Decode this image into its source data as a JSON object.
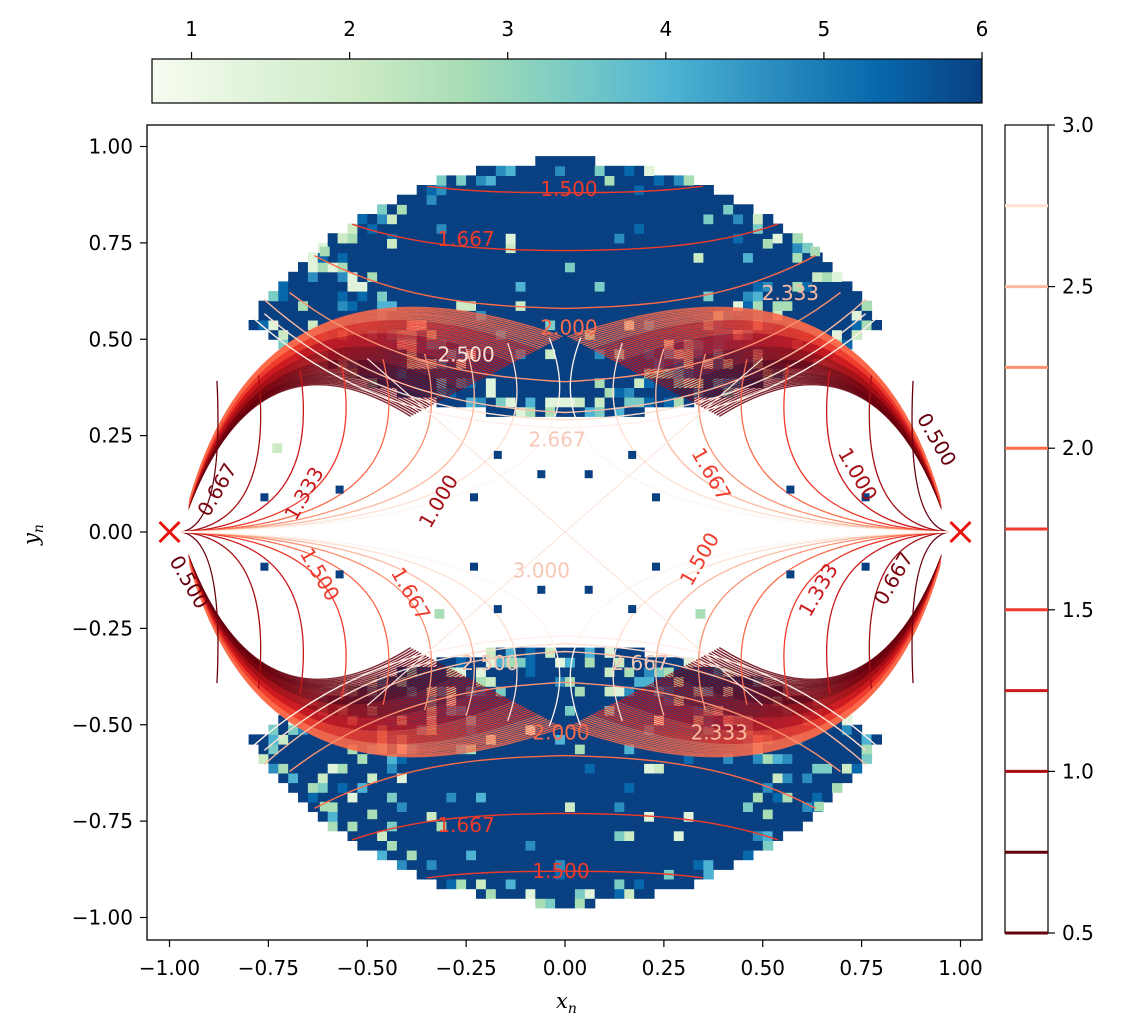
{
  "chart_data": {
    "type": "heatmap",
    "title": "",
    "xlabel": "x",
    "xlabel_sub": "n",
    "ylabel": "y",
    "ylabel_sub": "n",
    "xlim": [
      -1.05,
      1.05
    ],
    "ylim": [
      -1.05,
      1.05
    ],
    "xticks": [
      -1.0,
      -0.75,
      -0.5,
      -0.25,
      0.0,
      0.25,
      0.5,
      0.75,
      1.0
    ],
    "xtick_labels": [
      "−1.00",
      "−0.75",
      "−0.50",
      "−0.25",
      "0.00",
      "0.25",
      "0.50",
      "0.75",
      "1.00"
    ],
    "yticks": [
      -1.0,
      -0.75,
      -0.5,
      -0.25,
      0.0,
      0.25,
      0.5,
      0.75,
      1.0
    ],
    "ytick_labels": [
      "−1.00",
      "−0.75",
      "−0.50",
      "−0.25",
      "0.00",
      "0.25",
      "0.50",
      "0.75",
      "1.00"
    ],
    "grid": false,
    "heatmap_colorbar": {
      "orientation": "horizontal",
      "colormap": "GnBu",
      "range": [
        0.75,
        6.0
      ],
      "ticks": [
        1,
        2,
        3,
        4,
        5,
        6
      ],
      "tick_labels": [
        "1",
        "2",
        "3",
        "4",
        "5",
        "6"
      ]
    },
    "contour_colorbar": {
      "orientation": "vertical",
      "colormap": "Reds_r",
      "range": [
        0.5,
        3.0
      ],
      "ticks": [
        0.5,
        1.0,
        1.5,
        2.0,
        2.5,
        3.0
      ],
      "tick_labels": [
        "0.5",
        "1.0",
        "1.5",
        "2.0",
        "2.5",
        "3.0"
      ],
      "levels": [
        0.75,
        1.0,
        1.25,
        1.5,
        1.75,
        2.0,
        2.25,
        2.5,
        2.75
      ]
    },
    "heatmap_region": "unit disk, dominant value ~6, empty band |y| < 0.35 near centre",
    "heatmap_bright_cells": [
      {
        "x": -0.45,
        "y": 0.74,
        "value": 2.2
      },
      {
        "x": -0.62,
        "y": 0.72,
        "value": 2.6
      },
      {
        "x": 0.5,
        "y": 0.74,
        "value": 2.4
      },
      {
        "x": 0.62,
        "y": 0.72,
        "value": 2.8
      },
      {
        "x": -0.5,
        "y": -0.74,
        "value": 2.3
      },
      {
        "x": -0.62,
        "y": -0.72,
        "value": 2.7
      },
      {
        "x": 0.5,
        "y": -0.74,
        "value": 2.4
      },
      {
        "x": 0.63,
        "y": -0.72,
        "value": 2.8
      },
      {
        "x": -0.74,
        "y": 0.21,
        "value": 2.0
      },
      {
        "x": -0.33,
        "y": -0.22,
        "value": 2.5
      },
      {
        "x": 0.33,
        "y": -0.22,
        "value": 2.5
      }
    ],
    "scatter_points": [
      {
        "x": -0.17,
        "y": 0.2,
        "value": 6
      },
      {
        "x": 0.17,
        "y": 0.2,
        "value": 6
      },
      {
        "x": -0.06,
        "y": 0.15,
        "value": 6
      },
      {
        "x": 0.06,
        "y": 0.15,
        "value": 6
      },
      {
        "x": -0.23,
        "y": 0.09,
        "value": 6
      },
      {
        "x": 0.23,
        "y": 0.09,
        "value": 6
      },
      {
        "x": -0.57,
        "y": 0.11,
        "value": 6
      },
      {
        "x": 0.57,
        "y": 0.11,
        "value": 6
      },
      {
        "x": -0.76,
        "y": 0.09,
        "value": 6
      },
      {
        "x": 0.76,
        "y": 0.09,
        "value": 6
      },
      {
        "x": -0.76,
        "y": -0.09,
        "value": 6
      },
      {
        "x": 0.76,
        "y": -0.09,
        "value": 6
      },
      {
        "x": -0.57,
        "y": -0.11,
        "value": 6
      },
      {
        "x": 0.57,
        "y": -0.11,
        "value": 6
      },
      {
        "x": -0.23,
        "y": -0.09,
        "value": 6
      },
      {
        "x": 0.23,
        "y": -0.09,
        "value": 6
      },
      {
        "x": -0.06,
        "y": -0.15,
        "value": 6
      },
      {
        "x": 0.06,
        "y": -0.15,
        "value": 6
      },
      {
        "x": -0.17,
        "y": -0.2,
        "value": 6
      },
      {
        "x": 0.17,
        "y": -0.2,
        "value": 6
      }
    ],
    "markers": [
      {
        "x": -1.0,
        "y": 0.0,
        "shape": "x",
        "color": "#e8130f"
      },
      {
        "x": 1.0,
        "y": 0.0,
        "shape": "x",
        "color": "#e8130f"
      }
    ],
    "contour_labels": [
      {
        "text": "1.500",
        "x": 0.01,
        "y": 0.89,
        "level": 1.5
      },
      {
        "text": "1.667",
        "x": -0.25,
        "y": 0.76,
        "level": 1.667
      },
      {
        "text": "2.000",
        "x": 0.01,
        "y": 0.53,
        "level": 2.0
      },
      {
        "text": "2.500",
        "x": -0.25,
        "y": 0.46,
        "level": 2.5
      },
      {
        "text": "2.333",
        "x": 0.57,
        "y": 0.62,
        "level": 2.333
      },
      {
        "text": "2.667",
        "x": -0.02,
        "y": 0.24,
        "level": 2.667
      },
      {
        "text": "3.000",
        "x": -0.06,
        "y": -0.1,
        "level": 3.0
      },
      {
        "text": "1.000",
        "x": -0.32,
        "y": 0.08,
        "level": 1.0
      },
      {
        "text": "1.333",
        "x": -0.66,
        "y": 0.1,
        "level": 1.333
      },
      {
        "text": "0.667",
        "x": -0.88,
        "y": 0.11,
        "level": 0.667
      },
      {
        "text": "0.500",
        "x": -0.95,
        "y": -0.13,
        "level": 0.5
      },
      {
        "text": "1.500",
        "x": -0.62,
        "y": -0.11,
        "level": 1.5
      },
      {
        "text": "1.667",
        "x": -0.39,
        "y": -0.16,
        "level": 1.667
      },
      {
        "text": "1.667",
        "x": 0.37,
        "y": 0.15,
        "level": 1.667
      },
      {
        "text": "1.500",
        "x": 0.34,
        "y": -0.07,
        "level": 1.5
      },
      {
        "text": "1.000",
        "x": 0.74,
        "y": 0.15,
        "level": 1.0
      },
      {
        "text": "1.333",
        "x": 0.64,
        "y": -0.15,
        "level": 1.333
      },
      {
        "text": "0.667",
        "x": 0.83,
        "y": -0.12,
        "level": 0.667
      },
      {
        "text": "0.500",
        "x": 0.94,
        "y": 0.24,
        "level": 0.5
      },
      {
        "text": "2.500",
        "x": -0.19,
        "y": -0.34,
        "level": 2.5
      },
      {
        "text": "2.667",
        "x": 0.19,
        "y": -0.34,
        "level": 2.667
      },
      {
        "text": "2.000",
        "x": -0.01,
        "y": -0.52,
        "level": 2.0
      },
      {
        "text": "2.333",
        "x": 0.39,
        "y": -0.52,
        "level": 2.333
      },
      {
        "text": "1.667",
        "x": -0.25,
        "y": -0.76,
        "level": 1.667
      },
      {
        "text": "1.500",
        "x": -0.01,
        "y": -0.88,
        "level": 1.5
      }
    ]
  }
}
